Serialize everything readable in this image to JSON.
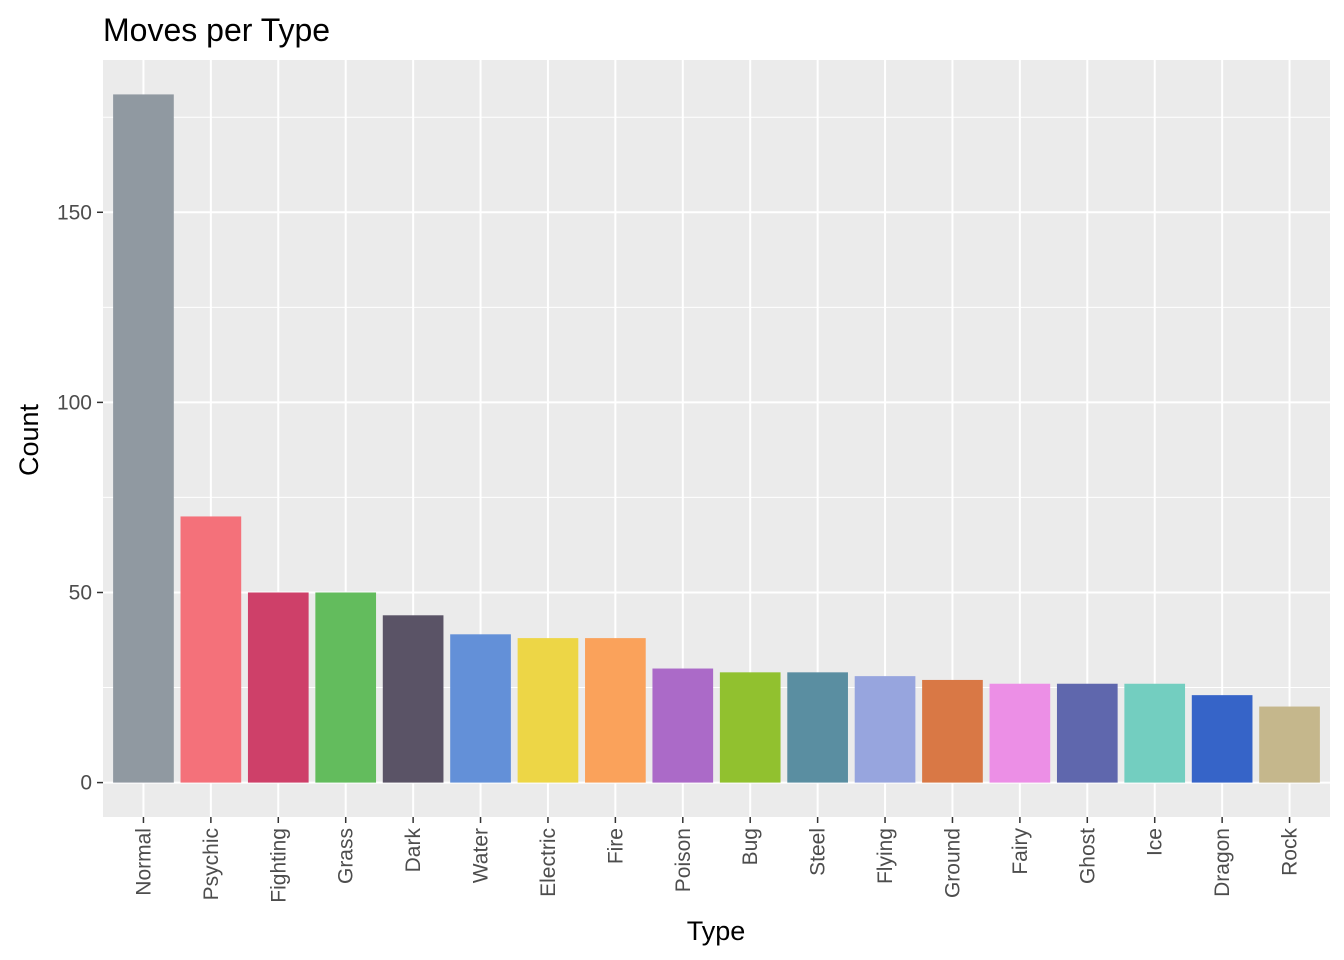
{
  "chart_data": {
    "type": "bar",
    "title": "Moves per Type",
    "xlabel": "Type",
    "ylabel": "Count",
    "categories": [
      "Normal",
      "Psychic",
      "Fighting",
      "Grass",
      "Dark",
      "Water",
      "Electric",
      "Fire",
      "Poison",
      "Bug",
      "Steel",
      "Flying",
      "Ground",
      "Fairy",
      "Ghost",
      "Ice",
      "Dragon",
      "Rock"
    ],
    "values": [
      181,
      70,
      50,
      50,
      44,
      39,
      38,
      38,
      30,
      29,
      29,
      28,
      27,
      26,
      26,
      26,
      23,
      20
    ],
    "colors": [
      "#9099A1",
      "#F4717A",
      "#CE4069",
      "#63BC5D",
      "#5A5366",
      "#6390D8",
      "#EDD646",
      "#FAA25B",
      "#AB6AC8",
      "#91C12F",
      "#5A8EA1",
      "#97A5DE",
      "#D97845",
      "#EC8FE6",
      "#5F67AD",
      "#73CEC0",
      "#3664C8",
      "#C5B78C"
    ],
    "yticks": [
      0,
      50,
      100,
      150
    ],
    "ylim": [
      -9.05,
      190.05
    ],
    "grid": true,
    "legend": "none"
  }
}
